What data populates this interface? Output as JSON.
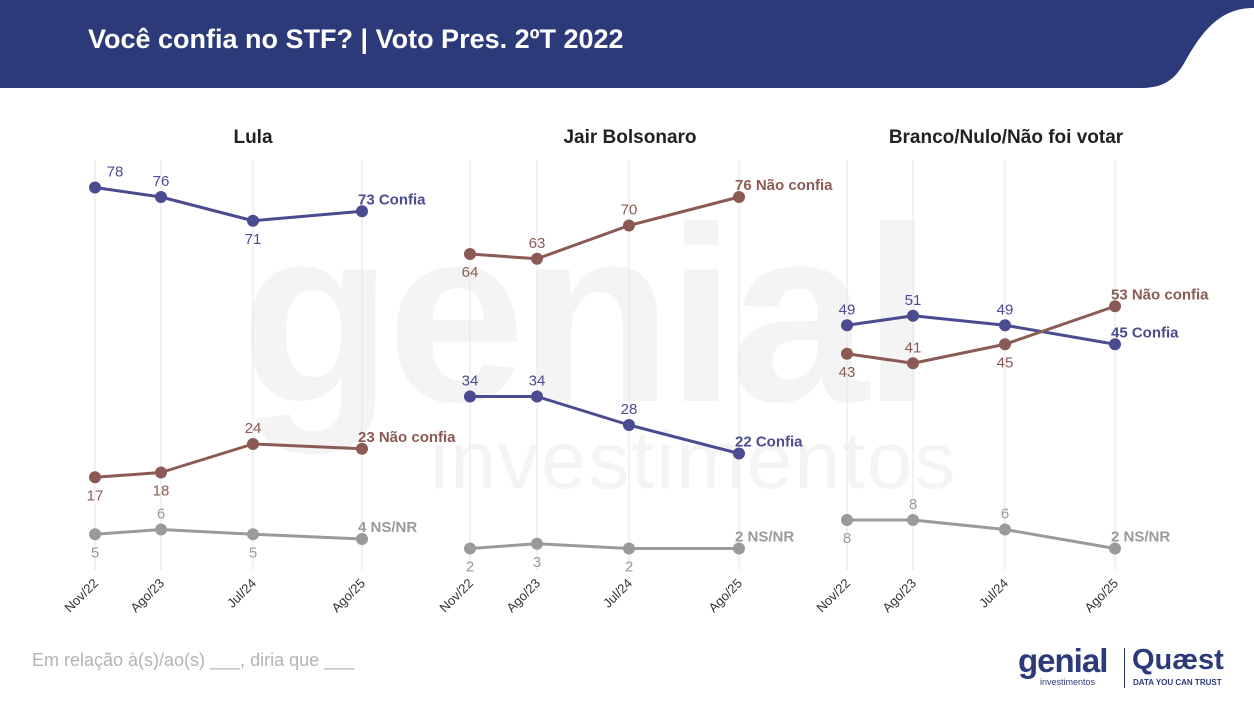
{
  "header": {
    "title": "Você confia no STF? | Voto Pres. 2ºT 2022"
  },
  "watermark": {
    "big": "genial",
    "small": "investimentos"
  },
  "footnote": "Em relação à(s)/ao(s) ___, diria que ___",
  "logos": {
    "genial": "genial",
    "genial_sub": "investimentos",
    "quaest": "Quæst",
    "quaest_sub": "DATA YOU CAN TRUST"
  },
  "colors": {
    "header": "#2c3a7a",
    "confia": "#4a4c8f",
    "nao_confia": "#8c5a55",
    "ns": "#9a9a9a",
    "grid": "#e6e6e6"
  },
  "chart_data": [
    {
      "type": "line",
      "title": "Lula",
      "categories": [
        "Nov/22",
        "Ago/23",
        "Jul/24",
        "Ago/25"
      ],
      "ylim": [
        0,
        85
      ],
      "series": [
        {
          "name": "Confia",
          "values": [
            78,
            76,
            71,
            73
          ],
          "end_label": "73 Confia",
          "labels": [
            "78",
            "76",
            "71",
            null
          ],
          "label_pos": [
            "above",
            "above",
            "below",
            null
          ]
        },
        {
          "name": "Não confia",
          "values": [
            17,
            18,
            24,
            23
          ],
          "end_label": "23 Não confia",
          "labels": [
            "17",
            "18",
            "24",
            null
          ],
          "label_pos": [
            "below",
            "below",
            "above",
            null
          ]
        },
        {
          "name": "NS/NR",
          "values": [
            5,
            6,
            5,
            4
          ],
          "end_label": "4 NS/NR",
          "labels": [
            "5",
            "6",
            "5",
            null
          ],
          "label_pos": [
            "below",
            "above",
            "below",
            null
          ]
        }
      ]
    },
    {
      "type": "line",
      "title": "Jair Bolsonaro",
      "categories": [
        "Nov/22",
        "Ago/23",
        "Jul/24",
        "Ago/25"
      ],
      "ylim": [
        0,
        85
      ],
      "series": [
        {
          "name": "Confia",
          "values": [
            34,
            34,
            28,
            22
          ],
          "end_label": "22 Confia",
          "labels": [
            "34",
            "34",
            "28",
            null
          ],
          "label_pos": [
            "above",
            "above",
            "above",
            null
          ]
        },
        {
          "name": "Não confia",
          "values": [
            64,
            63,
            70,
            76
          ],
          "end_label": "76 Não confia",
          "labels": [
            "64",
            "63",
            "70",
            null
          ],
          "label_pos": [
            "below",
            "above",
            "above",
            null
          ]
        },
        {
          "name": "NS/NR",
          "values": [
            2,
            3,
            2,
            2
          ],
          "end_label": "2 NS/NR",
          "labels": [
            "2",
            "3",
            "2",
            null
          ],
          "label_pos": [
            "below",
            "below",
            "below",
            null
          ]
        }
      ]
    },
    {
      "type": "line",
      "title": "Branco/Nulo/Não foi votar",
      "categories": [
        "Nov/22",
        "Ago/23",
        "Jul/24",
        "Ago/25"
      ],
      "ylim": [
        0,
        85
      ],
      "series": [
        {
          "name": "Confia",
          "values": [
            49,
            51,
            49,
            45
          ],
          "end_label": "45 Confia",
          "labels": [
            "49",
            "51",
            "49",
            null
          ],
          "label_pos": [
            "above",
            "above",
            "above",
            null
          ]
        },
        {
          "name": "Não confia",
          "values": [
            43,
            41,
            45,
            53
          ],
          "end_label": "53 Não confia",
          "labels": [
            "43",
            "41",
            "45",
            null
          ],
          "label_pos": [
            "below",
            "above",
            "below",
            null
          ]
        },
        {
          "name": "NS/NR",
          "values": [
            8,
            8,
            6,
            2
          ],
          "end_label": "2 NS/NR",
          "labels": [
            "8",
            "8",
            "6",
            null
          ],
          "label_pos": [
            "below",
            "above",
            "above",
            null
          ]
        }
      ]
    }
  ]
}
